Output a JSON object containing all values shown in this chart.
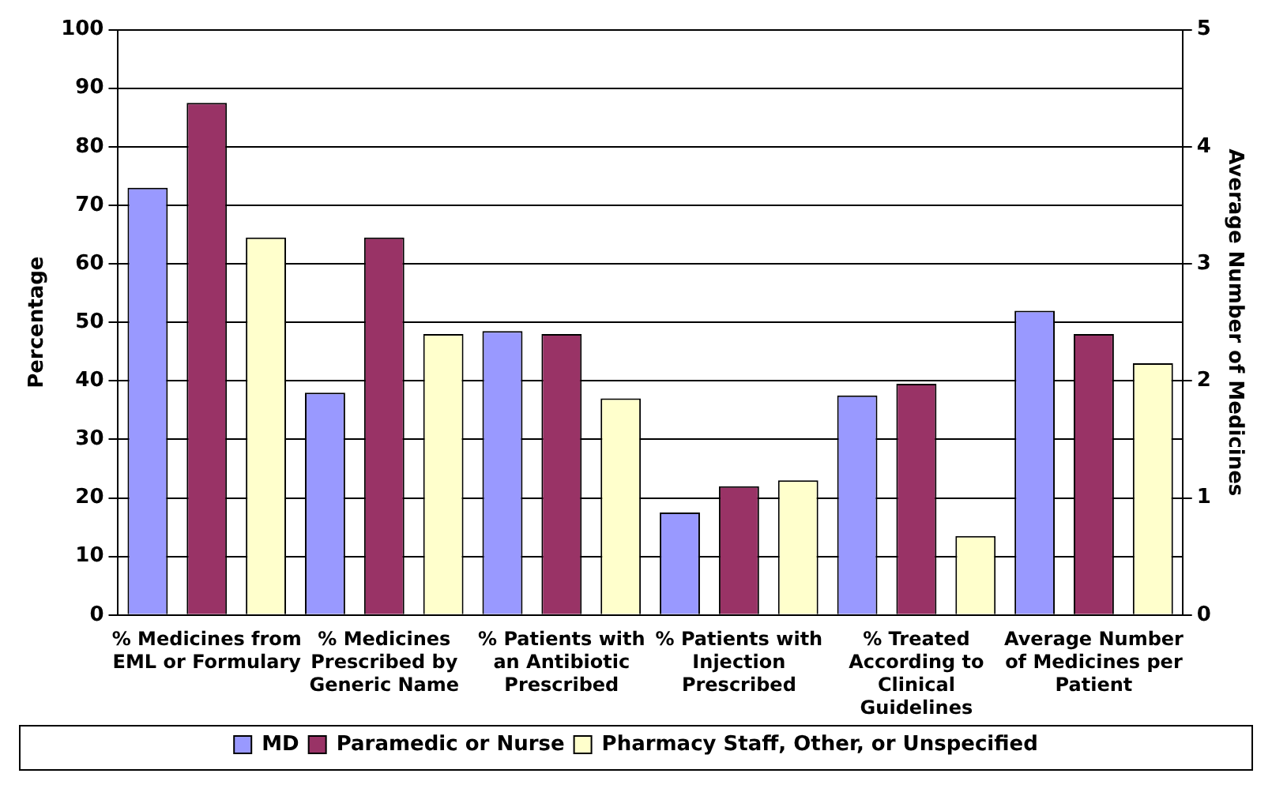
{
  "chart_data": {
    "type": "bar",
    "ylabel": "Percentage",
    "y2label": "Average Number of Medicines",
    "categories": [
      "% Medicines from EML or Formulary",
      "% Medicines Prescribed by Generic Name",
      "% Patients with an Antibiotic Prescribed",
      "% Patients with Injection Prescribed",
      "% Treated According to Clinical Guidelines",
      "Average Number of Medicines per Patient"
    ],
    "series": [
      {
        "name": "MD",
        "color": "#9999ff",
        "values": [
          73,
          38,
          48.5,
          17.5,
          37.5,
          null
        ]
      },
      {
        "name": "Paramedic or Nurse",
        "color": "#993366",
        "values": [
          87.5,
          64.5,
          48,
          22,
          39.5,
          null
        ]
      },
      {
        "name": "Pharmacy Staff, Other, or Unspecified",
        "color": "#ffffcc",
        "values": [
          64.5,
          48,
          37,
          23,
          13.5,
          null
        ]
      },
      {
        "color": "#9999ff",
        "axis": "y2",
        "values": [
          null,
          null,
          null,
          null,
          null,
          2.6
        ]
      },
      {
        "color": "#993366",
        "axis": "y2",
        "values": [
          null,
          null,
          null,
          null,
          null,
          2.4
        ]
      },
      {
        "color": "#ffffcc",
        "axis": "y2",
        "values": [
          null,
          null,
          null,
          null,
          null,
          2.15
        ]
      }
    ],
    "ylim": [
      0,
      100
    ],
    "yticks": [
      0,
      10,
      20,
      30,
      40,
      50,
      60,
      70,
      80,
      90,
      100
    ],
    "y2lim": [
      0,
      5
    ],
    "y2ticks": [
      0,
      1,
      2,
      3,
      4,
      5
    ],
    "grid": "y",
    "legend": "bottom"
  }
}
